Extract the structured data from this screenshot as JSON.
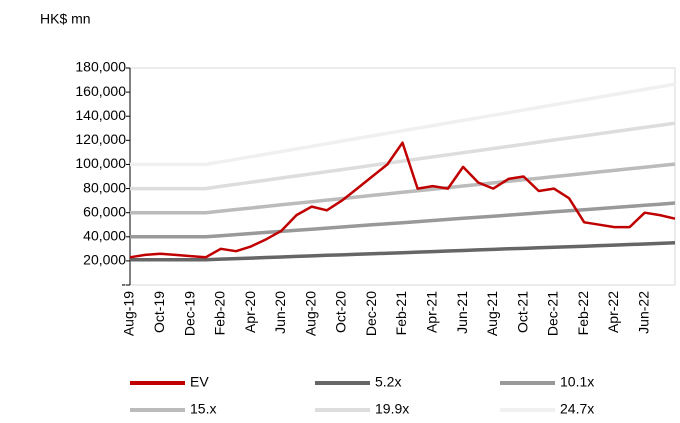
{
  "chart_data": {
    "type": "line",
    "unit_label": "HK$ mn",
    "x": [
      "Aug-19",
      null,
      "Oct-19",
      null,
      "Dec-19",
      null,
      "Feb-20",
      null,
      "Apr-20",
      null,
      "Jun-20",
      null,
      "Aug-20",
      null,
      "Oct-20",
      null,
      "Dec-20",
      null,
      "Feb-21",
      null,
      "Apr-21",
      null,
      "Jun-21",
      null,
      "Aug-21",
      null,
      "Oct-21",
      null,
      "Dec-21",
      null,
      "Feb-22",
      null,
      "Apr-22",
      null,
      "Jun-22",
      null,
      null
    ],
    "ylim": [
      0,
      180000
    ],
    "yticks": [
      {
        "value": 0,
        "label": "-"
      },
      {
        "value": 20000,
        "label": "20,000"
      },
      {
        "value": 40000,
        "label": "40,000"
      },
      {
        "value": 60000,
        "label": "60,000"
      },
      {
        "value": 80000,
        "label": "80,000"
      },
      {
        "value": 100000,
        "label": "100,000"
      },
      {
        "value": 120000,
        "label": "120,000"
      },
      {
        "value": 140000,
        "label": "140,000"
      },
      {
        "value": 160000,
        "label": "160,000"
      },
      {
        "value": 180000,
        "label": "180,000"
      }
    ],
    "grid": false,
    "series": [
      {
        "name": "EV",
        "color": "#c00000",
        "values": [
          23000,
          25000,
          26000,
          25000,
          24000,
          23000,
          30000,
          28000,
          32000,
          38000,
          45000,
          58000,
          65000,
          62000,
          70000,
          80000,
          90000,
          100000,
          118000,
          80000,
          82000,
          80000,
          98000,
          85000,
          80000,
          88000,
          90000,
          78000,
          80000,
          72000,
          52000,
          50000,
          48000,
          48000,
          60000,
          58000,
          55000
        ]
      },
      {
        "name": "5.2x",
        "color": "#666666",
        "values": [
          21000,
          21000,
          21000,
          21000,
          21000,
          21000,
          21500,
          21900,
          22300,
          22800,
          23200,
          23700,
          24100,
          24600,
          25000,
          25500,
          25900,
          26400,
          26800,
          27300,
          27700,
          28200,
          28600,
          29100,
          29500,
          30000,
          30400,
          30900,
          31300,
          31800,
          32200,
          32700,
          33100,
          33600,
          34000,
          34500,
          35000
        ]
      },
      {
        "name": "10.1x",
        "color": "#999999",
        "values": [
          40000,
          40000,
          40000,
          40000,
          40000,
          40000,
          40900,
          41800,
          42700,
          43600,
          44500,
          45400,
          46300,
          47200,
          48100,
          49000,
          49900,
          50800,
          51700,
          52600,
          53500,
          54400,
          55300,
          56200,
          57100,
          58000,
          58900,
          59800,
          60700,
          61600,
          62500,
          63400,
          64300,
          65200,
          66100,
          67000,
          68000
        ]
      },
      {
        "name": "15.x",
        "color": "#bbbbbb",
        "values": [
          60000,
          60000,
          60000,
          60000,
          60000,
          60000,
          61300,
          62600,
          63900,
          65200,
          66500,
          67800,
          69100,
          70400,
          71700,
          73000,
          74300,
          75600,
          76900,
          78200,
          79500,
          80800,
          82100,
          83400,
          84700,
          86000,
          87300,
          88600,
          89900,
          91200,
          92500,
          93800,
          95100,
          96400,
          97700,
          99000,
          100300
        ]
      },
      {
        "name": "19.9x",
        "color": "#dddddd",
        "values": [
          80000,
          80000,
          80000,
          80000,
          80000,
          80000,
          81750,
          83500,
          85250,
          87000,
          88750,
          90500,
          92250,
          94000,
          95750,
          97500,
          99250,
          101000,
          102750,
          104500,
          106250,
          108000,
          109750,
          111500,
          113250,
          115000,
          116750,
          118500,
          120250,
          122000,
          123750,
          125500,
          127250,
          129000,
          130750,
          132500,
          134250
        ]
      },
      {
        "name": "24.7x",
        "color": "#f0f0f0",
        "values": [
          100000,
          100000,
          100000,
          100000,
          100000,
          100000,
          102150,
          104300,
          106450,
          108600,
          110750,
          112900,
          115050,
          117200,
          119350,
          121500,
          123650,
          125800,
          127950,
          130100,
          132250,
          134400,
          136550,
          138700,
          140850,
          143000,
          145150,
          147300,
          149450,
          151600,
          153750,
          155900,
          158050,
          160200,
          162350,
          164500,
          166650
        ]
      }
    ]
  }
}
